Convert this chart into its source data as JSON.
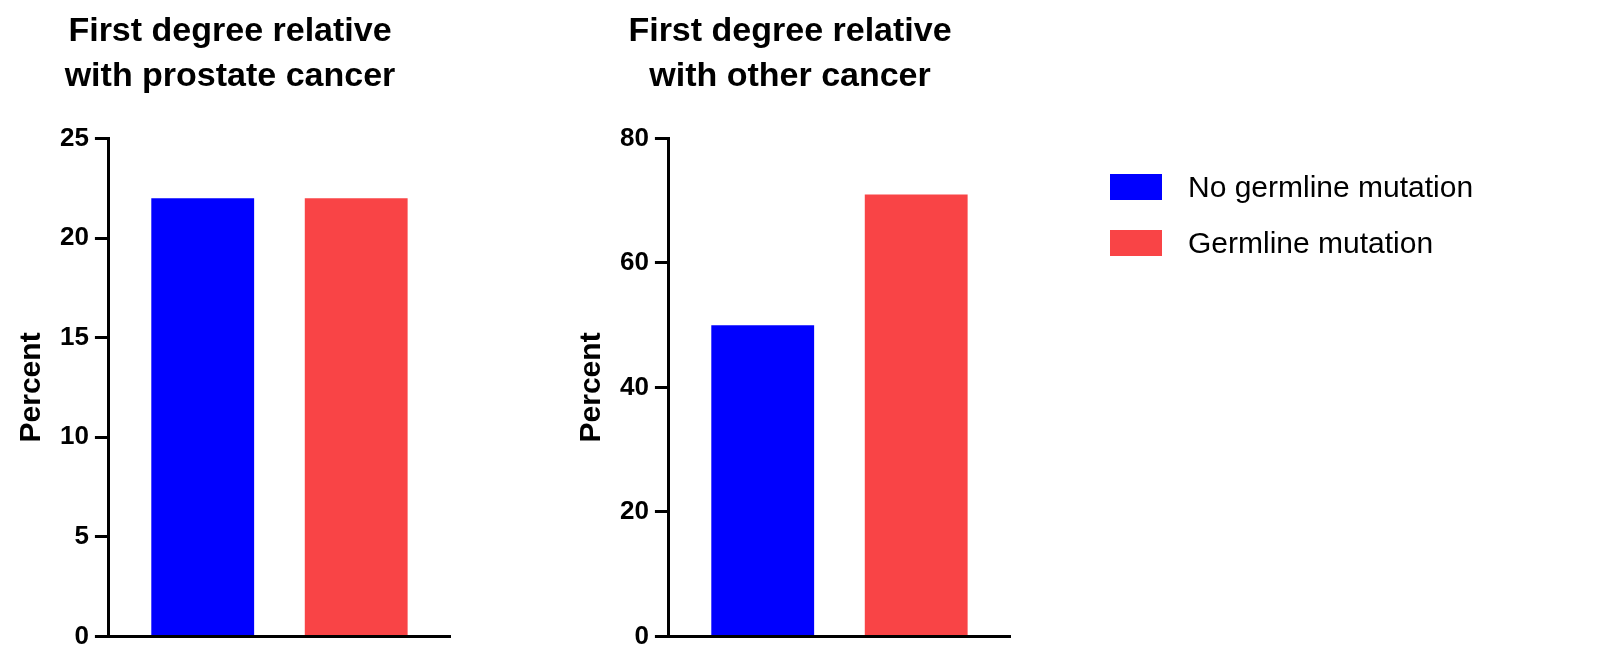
{
  "chart_data": [
    {
      "type": "bar",
      "title": "First degree relative with prostate cancer",
      "ylabel": "Percent",
      "categories": [
        null
      ],
      "series": [
        {
          "color": "#0000ff",
          "values": [
            22
          ]
        },
        {
          "color": "#f94446",
          "values": [
            22
          ]
        }
      ],
      "ylim": [
        0,
        25
      ],
      "yticks": [
        0,
        5,
        10,
        15,
        20,
        25
      ],
      "grid": false,
      "legend": false
    },
    {
      "type": "bar",
      "title": "First degree relative with other cancer",
      "ylabel": "Percent",
      "categories": [
        null
      ],
      "series": [
        {
          "name": "No germline mutation",
          "color": "#0000ff",
          "values": [
            50
          ]
        },
        {
          "name": "Germline mutation",
          "color": "#f94446",
          "values": [
            71
          ]
        }
      ],
      "ylim": [
        0,
        80
      ],
      "yticks": [
        0,
        20,
        40,
        60,
        80
      ],
      "grid": false,
      "legend": "right"
    }
  ]
}
